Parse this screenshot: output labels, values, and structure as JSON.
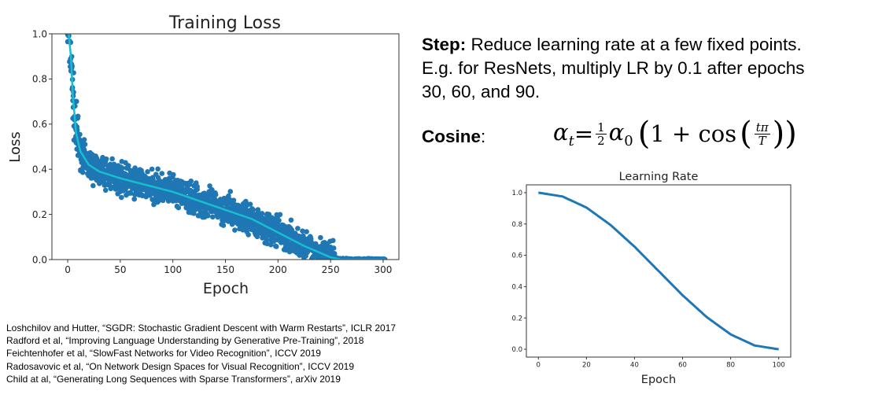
{
  "slide": {
    "step_label": "Step:",
    "step_text": " Reduce learning rate at a few fixed points.",
    "step_line2": "E.g. for ResNets, multiply LR by 0.1 after epochs",
    "step_line3": "30, 60, and 90.",
    "cosine_label": "Cosine",
    "cosine_colon": ":",
    "formula": {
      "lhs": "α",
      "lhs_sub": "t",
      "eq": " = ",
      "half_num": "1",
      "half_den": "2",
      "alpha0": "α",
      "alpha0_sub": "0",
      "one_plus_cos": "1 + cos",
      "frac_num": "tπ",
      "frac_den": "T"
    },
    "references": [
      "Loshchilov and Hutter, “SGDR: Stochastic Gradient Descent with Warm Restarts”, ICLR 2017",
      "Radford et al, “Improving Language Understanding by Generative Pre-Training”, 2018",
      "Feichtenhofer et al, “SlowFast Networks for Video Recognition”, ICCV 2019",
      "Radosavovic et al, “On Network Design Spaces for Visual Recognition”, ICCV 2019",
      "Child at al, “Generating Long Sequences with Sparse Transformers”, arXiv 2019"
    ]
  },
  "chart_data": [
    {
      "type": "scatter",
      "title": "Training Loss",
      "xlabel": "Epoch",
      "ylabel": "Loss",
      "xlim": [
        -15,
        315
      ],
      "ylim": [
        0.0,
        1.0
      ],
      "xticks": [
        "0",
        "50",
        "100",
        "150",
        "200",
        "250",
        "300"
      ],
      "yticks": [
        "0.0",
        "0.2",
        "0.4",
        "0.6",
        "0.8",
        "1.0"
      ],
      "grid": false,
      "colors": {
        "points": "#1f77b4",
        "smoothed": "#17becf"
      },
      "smoothed_curve": {
        "x": [
          1,
          3,
          5,
          8,
          12,
          20,
          30,
          50,
          75,
          100,
          125,
          150,
          175,
          200,
          225,
          250,
          260,
          300
        ],
        "y": [
          1.0,
          0.9,
          0.72,
          0.56,
          0.48,
          0.42,
          0.39,
          0.36,
          0.33,
          0.3,
          0.26,
          0.22,
          0.18,
          0.12,
          0.06,
          0.01,
          0.0,
          0.0
        ]
      }
    },
    {
      "type": "line",
      "title": "Learning Rate",
      "xlabel": "Epoch",
      "ylabel": "",
      "xlim": [
        -5,
        105
      ],
      "ylim": [
        -0.05,
        1.05
      ],
      "xticks": [
        "0",
        "20",
        "40",
        "60",
        "80",
        "100"
      ],
      "yticks": [
        "0.0",
        "0.2",
        "0.4",
        "0.6",
        "0.8",
        "1.0"
      ],
      "grid": false,
      "color": "#1f77b4",
      "x": [
        0,
        10,
        20,
        30,
        40,
        50,
        60,
        70,
        80,
        90,
        100
      ],
      "y": [
        1.0,
        0.976,
        0.905,
        0.794,
        0.655,
        0.5,
        0.345,
        0.206,
        0.095,
        0.024,
        0.0
      ]
    }
  ]
}
